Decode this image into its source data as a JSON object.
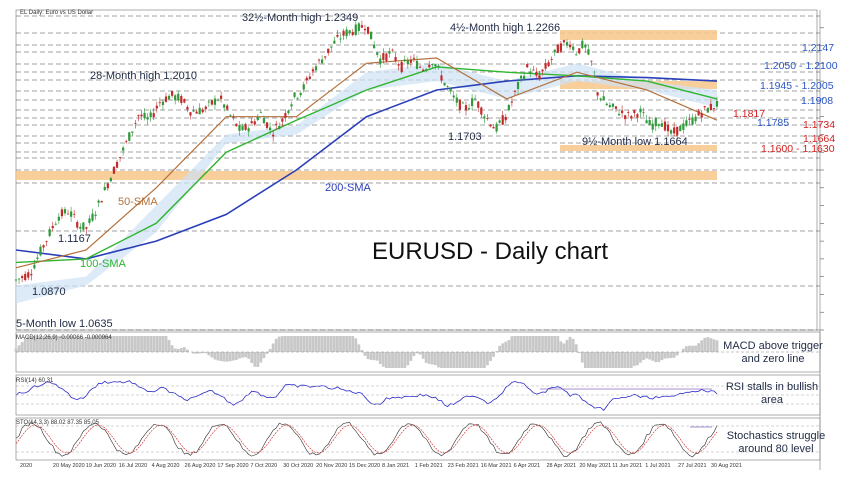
{
  "chart_data": {
    "type": "candlestick",
    "header": "EL Daily: Euro vs US Dollar",
    "title": "EURUSD - Daily chart",
    "x_tick_labels": [
      "2020",
      "20 May 2020",
      "19 Jun 2020",
      "16 Jul 2020",
      "4 Aug 2020",
      "26 Aug 2020",
      "17 Sep 2020",
      "7 Oct 2020",
      "30 Oct 2020",
      "20 Nov 2020",
      "15 Dec 2020",
      "8 Jan 2021",
      "1 Feb 2021",
      "23 Feb 2021",
      "16 Mar 2021",
      "6 Apr 2021",
      "28 Apr 2021",
      "20 May 2021",
      "11 Jun 2021",
      "1 Jul 2021",
      "27 Jul 2021",
      "30 Aug 2021"
    ],
    "annotations": {
      "high_32m": "32½-Month high 1.2349",
      "high_4m": "4½-Month high 1.2266",
      "high_28m": "28-Month high 1.2010",
      "low_1703": "1.1703",
      "low_9m": "9½-Month low 1.1664",
      "low_1167": "1.1167",
      "low_1087": "1.0870",
      "low_5m": "5-Month low 1.0635",
      "sma50": "50-SMA",
      "sma100": "100-SMA",
      "sma200": "200-SMA"
    },
    "levels": [
      {
        "label": "1.2147",
        "color": "#2a56c6"
      },
      {
        "label": "1.2050 - 1.2100",
        "color": "#2a56c6"
      },
      {
        "label": "1.1945 - 1.2005",
        "color": "#2a56c6"
      },
      {
        "label": "1.1908",
        "color": "#2a56c6"
      },
      {
        "label": "1.1817",
        "color": "#d42020"
      },
      {
        "label": "1.1785",
        "color": "#2a56c6"
      },
      {
        "label": "1.1734",
        "color": "#d42020"
      },
      {
        "label": "1.1664",
        "color": "#d42020"
      },
      {
        "label": "1.1600 - 1.1630",
        "color": "#d42020"
      }
    ],
    "price_series": [
      {
        "t": 0,
        "v": 1.088
      },
      {
        "t": 0.02,
        "v": 1.092
      },
      {
        "t": 0.04,
        "v": 1.108
      },
      {
        "t": 0.06,
        "v": 1.124
      },
      {
        "t": 0.075,
        "v": 1.127
      },
      {
        "t": 0.09,
        "v": 1.119
      },
      {
        "t": 0.1,
        "v": 1.117
      },
      {
        "t": 0.115,
        "v": 1.128
      },
      {
        "t": 0.135,
        "v": 1.146
      },
      {
        "t": 0.155,
        "v": 1.163
      },
      {
        "t": 0.175,
        "v": 1.181
      },
      {
        "t": 0.19,
        "v": 1.178
      },
      {
        "t": 0.205,
        "v": 1.188
      },
      {
        "t": 0.22,
        "v": 1.192
      },
      {
        "t": 0.235,
        "v": 1.19
      },
      {
        "t": 0.25,
        "v": 1.183
      },
      {
        "t": 0.27,
        "v": 1.184
      },
      {
        "t": 0.29,
        "v": 1.191
      },
      {
        "t": 0.305,
        "v": 1.181
      },
      {
        "t": 0.32,
        "v": 1.172
      },
      {
        "t": 0.335,
        "v": 1.175
      },
      {
        "t": 0.35,
        "v": 1.182
      },
      {
        "t": 0.365,
        "v": 1.171
      },
      {
        "t": 0.38,
        "v": 1.178
      },
      {
        "t": 0.395,
        "v": 1.19
      },
      {
        "t": 0.41,
        "v": 1.196
      },
      {
        "t": 0.425,
        "v": 1.207
      },
      {
        "t": 0.44,
        "v": 1.214
      },
      {
        "t": 0.455,
        "v": 1.222
      },
      {
        "t": 0.47,
        "v": 1.227
      },
      {
        "t": 0.485,
        "v": 1.229
      },
      {
        "t": 0.5,
        "v": 1.232
      },
      {
        "t": 0.51,
        "v": 1.221
      },
      {
        "t": 0.52,
        "v": 1.212
      },
      {
        "t": 0.535,
        "v": 1.216
      },
      {
        "t": 0.55,
        "v": 1.208
      },
      {
        "t": 0.565,
        "v": 1.212
      },
      {
        "t": 0.58,
        "v": 1.207
      },
      {
        "t": 0.595,
        "v": 1.212
      },
      {
        "t": 0.61,
        "v": 1.2
      },
      {
        "t": 0.625,
        "v": 1.19
      },
      {
        "t": 0.64,
        "v": 1.184
      },
      {
        "t": 0.655,
        "v": 1.19
      },
      {
        "t": 0.67,
        "v": 1.18
      },
      {
        "t": 0.685,
        "v": 1.173
      },
      {
        "t": 0.7,
        "v": 1.181
      },
      {
        "t": 0.715,
        "v": 1.196
      },
      {
        "t": 0.73,
        "v": 1.208
      },
      {
        "t": 0.745,
        "v": 1.202
      },
      {
        "t": 0.76,
        "v": 1.21
      },
      {
        "t": 0.775,
        "v": 1.219
      },
      {
        "t": 0.79,
        "v": 1.222
      },
      {
        "t": 0.8,
        "v": 1.216
      },
      {
        "t": 0.81,
        "v": 1.221
      },
      {
        "t": 0.82,
        "v": 1.212
      },
      {
        "t": 0.83,
        "v": 1.193
      },
      {
        "t": 0.845,
        "v": 1.186
      },
      {
        "t": 0.86,
        "v": 1.183
      },
      {
        "t": 0.875,
        "v": 1.18
      },
      {
        "t": 0.89,
        "v": 1.183
      },
      {
        "t": 0.905,
        "v": 1.175
      },
      {
        "t": 0.92,
        "v": 1.178
      },
      {
        "t": 0.935,
        "v": 1.17
      },
      {
        "t": 0.95,
        "v": 1.174
      },
      {
        "t": 0.965,
        "v": 1.178
      },
      {
        "t": 0.98,
        "v": 1.183
      },
      {
        "t": 1,
        "v": 1.187
      }
    ],
    "sma50": [
      {
        "t": 0,
        "v": 1.095
      },
      {
        "t": 0.1,
        "v": 1.105
      },
      {
        "t": 0.2,
        "v": 1.14
      },
      {
        "t": 0.3,
        "v": 1.18
      },
      {
        "t": 0.4,
        "v": 1.18
      },
      {
        "t": 0.5,
        "v": 1.21
      },
      {
        "t": 0.6,
        "v": 1.213
      },
      {
        "t": 0.7,
        "v": 1.19
      },
      {
        "t": 0.8,
        "v": 1.205
      },
      {
        "t": 0.9,
        "v": 1.195
      },
      {
        "t": 1,
        "v": 1.178
      }
    ],
    "sma100": [
      {
        "t": 0,
        "v": 1.098
      },
      {
        "t": 0.1,
        "v": 1.1
      },
      {
        "t": 0.2,
        "v": 1.12
      },
      {
        "t": 0.3,
        "v": 1.16
      },
      {
        "t": 0.4,
        "v": 1.178
      },
      {
        "t": 0.5,
        "v": 1.195
      },
      {
        "t": 0.6,
        "v": 1.208
      },
      {
        "t": 0.7,
        "v": 1.205
      },
      {
        "t": 0.8,
        "v": 1.203
      },
      {
        "t": 0.9,
        "v": 1.2
      },
      {
        "t": 1,
        "v": 1.19
      }
    ],
    "sma200": [
      {
        "t": 0,
        "v": 1.105
      },
      {
        "t": 0.1,
        "v": 1.1
      },
      {
        "t": 0.2,
        "v": 1.11
      },
      {
        "t": 0.3,
        "v": 1.125
      },
      {
        "t": 0.4,
        "v": 1.15
      },
      {
        "t": 0.5,
        "v": 1.18
      },
      {
        "t": 0.6,
        "v": 1.195
      },
      {
        "t": 0.7,
        "v": 1.2
      },
      {
        "t": 0.8,
        "v": 1.203
      },
      {
        "t": 0.9,
        "v": 1.202
      },
      {
        "t": 1,
        "v": 1.2
      }
    ],
    "indicators": [
      {
        "name": "MACD",
        "header": "MACD(12,26,9) -0.00066 -0.000964",
        "note": "MACD above trigger and zero line"
      },
      {
        "name": "RSI",
        "header": "RSI(14) 60.31",
        "note": "RSI stalls in bullish area"
      },
      {
        "name": "Stochastics",
        "header": "STO(14,3,3) 88.02 87.35 85.05",
        "note": "Stochastics struggle around 80 level"
      }
    ]
  }
}
